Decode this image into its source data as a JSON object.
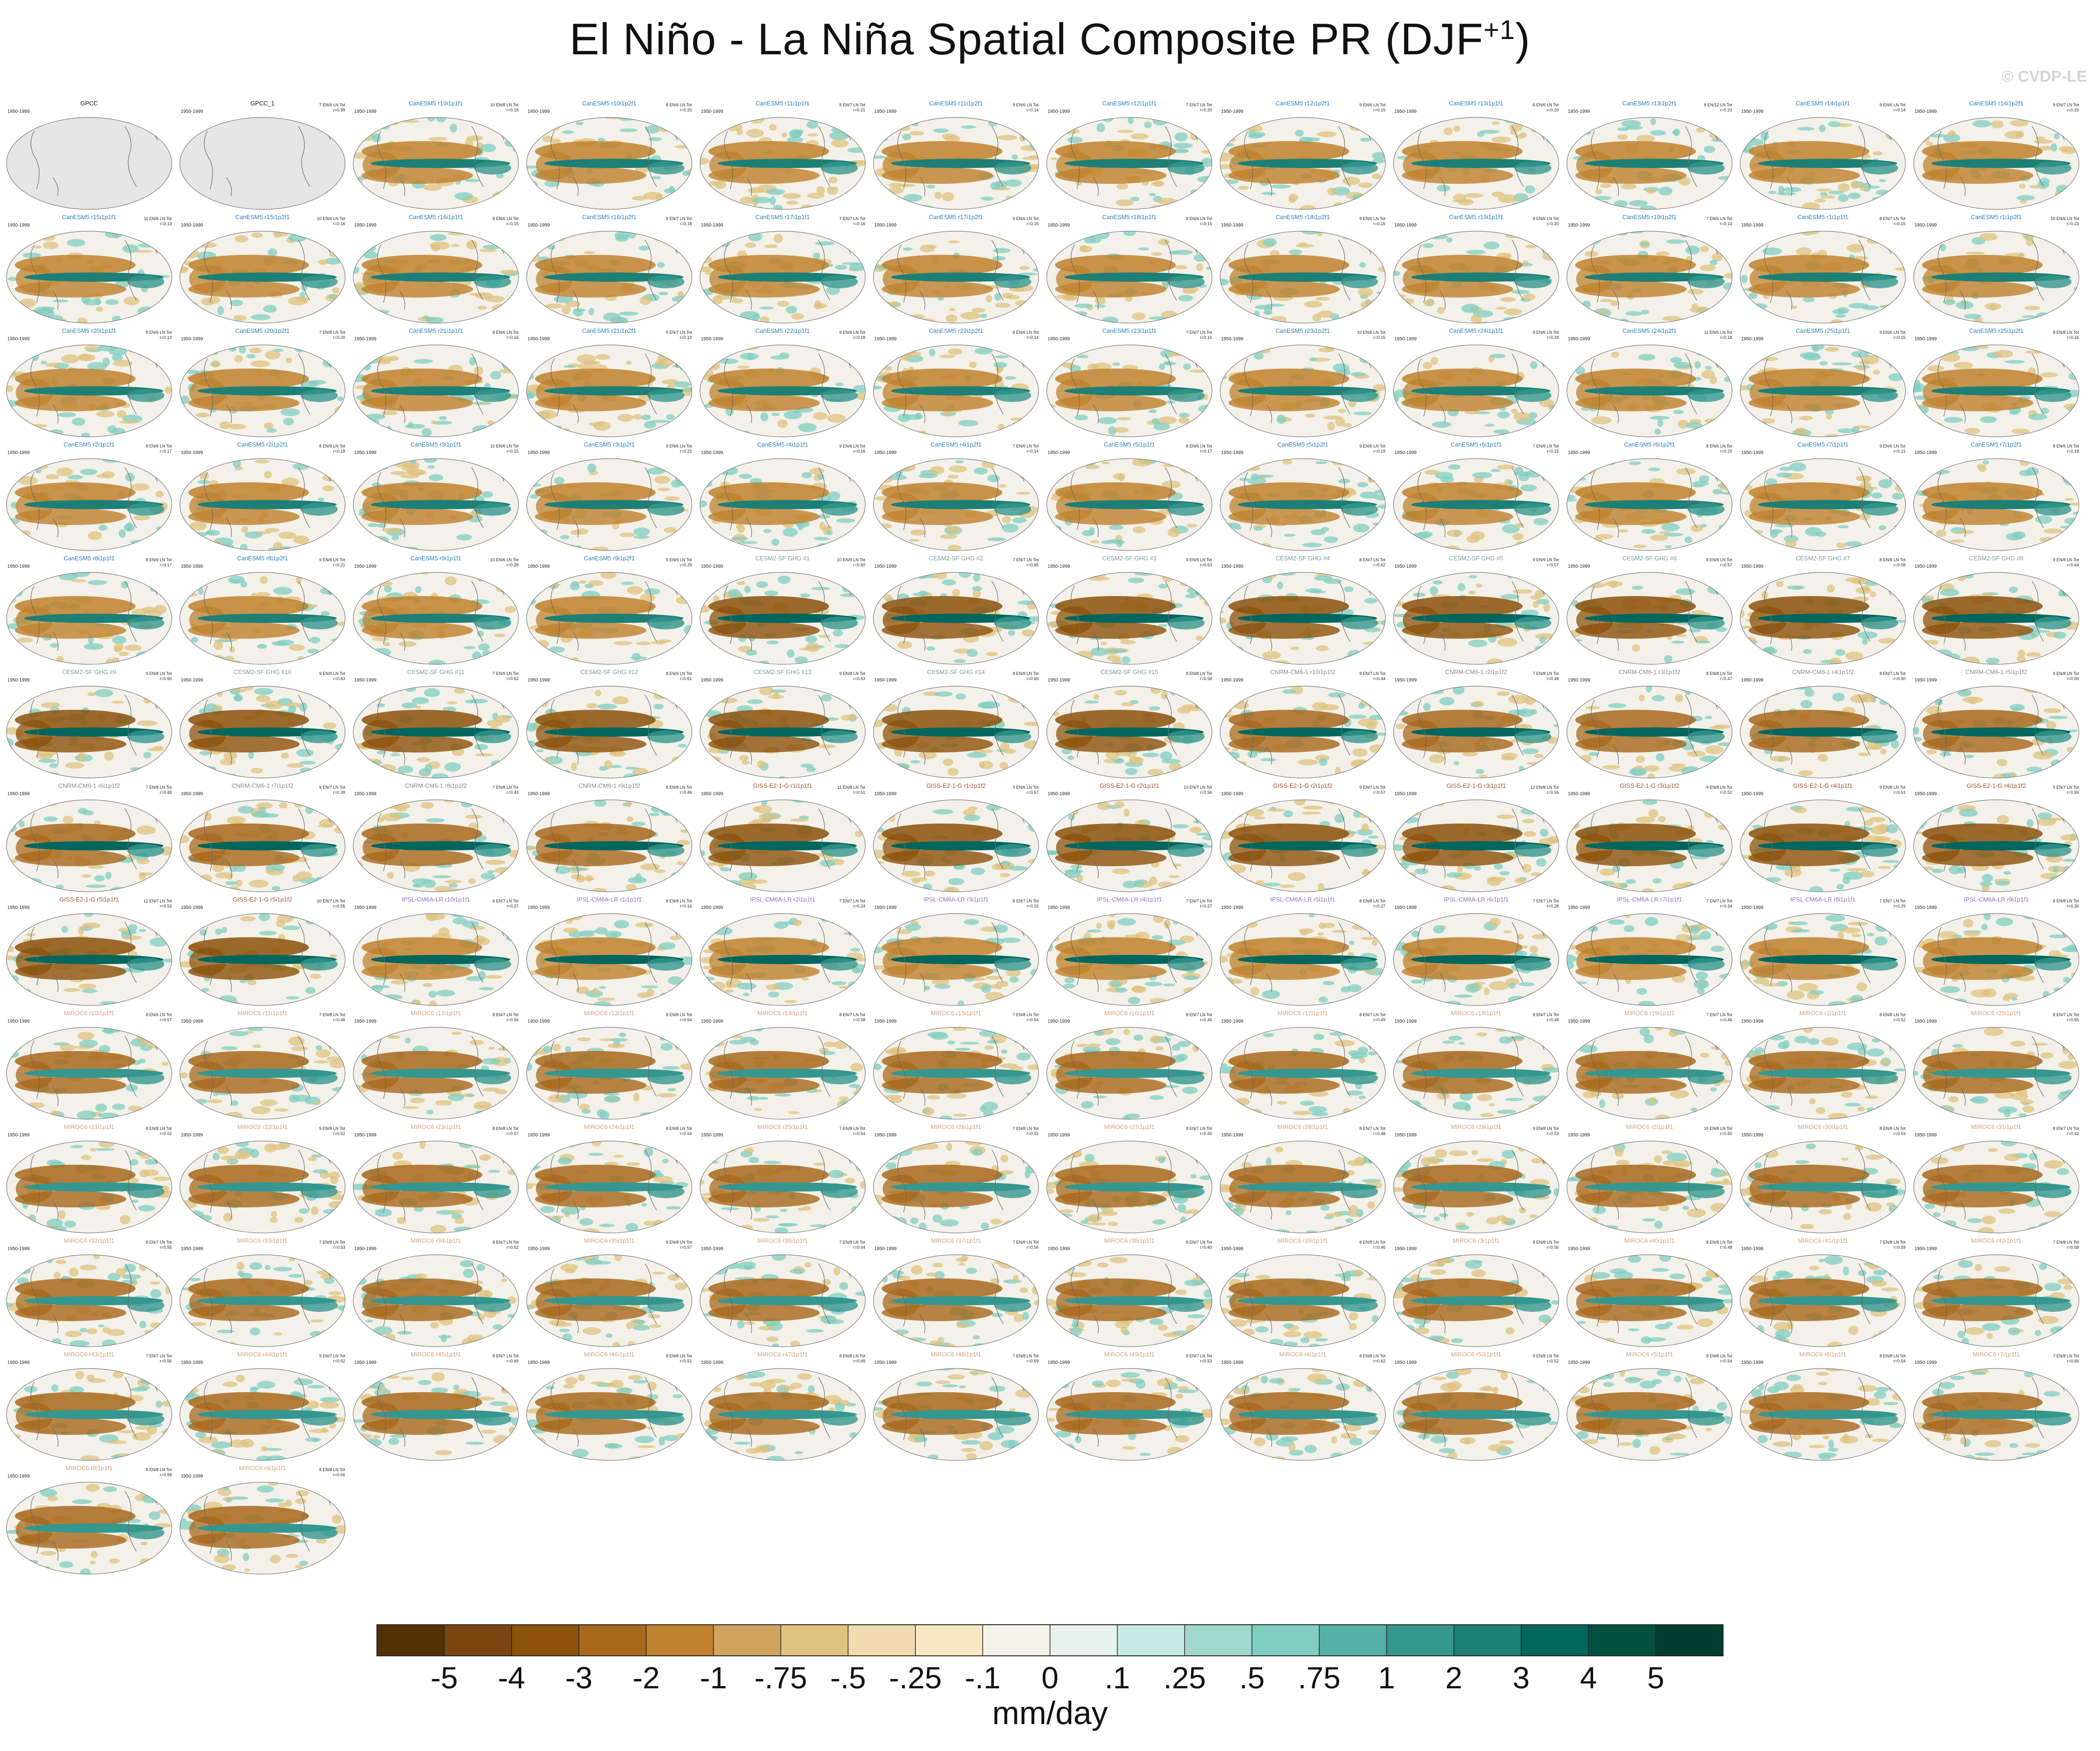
{
  "title": {
    "main": "El Niño - La Niña Spatial Composite PR (DJF",
    "superscript": "+1",
    "close": ")"
  },
  "watermark": "© CVDP-LE",
  "chart_data": {
    "type": "map-grid",
    "units": "mm/day",
    "panel_period": "1950-1999",
    "colorbar": {
      "labels": [
        "-5",
        "-4",
        "-3",
        "-2",
        "-1",
        "-.75",
        "-.5",
        "-.25",
        "-.1",
        "0",
        ".1",
        ".25",
        ".5",
        ".75",
        "1",
        "2",
        "3",
        "4",
        "5"
      ],
      "colors": [
        "#543005",
        "#7a4510",
        "#8c510a",
        "#a8681c",
        "#bf812d",
        "#d0a45f",
        "#dfc27d",
        "#f0dcb0",
        "#f6e8c3",
        "#f5f2ea",
        "#e8f3ef",
        "#c7eae5",
        "#a0d8cf",
        "#80cdc1",
        "#56b2a7",
        "#35978f",
        "#1d7f76",
        "#01665e",
        "#02503f",
        "#003c30"
      ]
    },
    "panels": [
      {
        "title": "GPCC",
        "stats": "",
        "group": "obs"
      },
      {
        "title": "GPCC_1",
        "stats": "7 EN/6 LN Tot\nr=0.99",
        "group": "obs"
      },
      {
        "title": "CanESM5 r10i1p1f1",
        "stats": "10 EN/8 LN Tot\nr=0.18",
        "group": "canesm"
      },
      {
        "title": "CanESM5 r10i1p2f1",
        "stats": "8 EN/6 LN Tot\nr=0.25",
        "group": "canesm"
      },
      {
        "title": "CanESM5 r11i1p1f1",
        "stats": "8 EN/7 LN Tot\nr=0.21",
        "group": "canesm"
      },
      {
        "title": "CanESM5 r11i1p2f1",
        "stats": "9 EN/6 LN Tot\nr=0.14",
        "group": "canesm"
      },
      {
        "title": "CanESM5 r12i1p1f1",
        "stats": "7 EN/7 LN Tot\nr=0.20",
        "group": "canesm"
      },
      {
        "title": "CanESM5 r12i1p2f1",
        "stats": "9 EN/6 LN Tot\nr=0.15",
        "group": "canesm"
      },
      {
        "title": "CanESM5 r13i1p1f1",
        "stats": "6 EN/6 LN Tot\nr=0.20",
        "group": "canesm"
      },
      {
        "title": "CanESM5 r13i1p2f1",
        "stats": "8 EN/12 LN Tot\nr=0.23",
        "group": "canesm"
      },
      {
        "title": "CanESM5 r14i1p1f1",
        "stats": "9 EN/6 LN Tot\nr=0.14",
        "group": "canesm"
      },
      {
        "title": "CanESM5 r14i1p2f1",
        "stats": "9 EN/7 LN Tot\nr=0.15",
        "group": "canesm"
      },
      {
        "title": "CanESM5 r15i1p1f1",
        "stats": "11 EN/6 LN Tot\nr=0.13",
        "group": "canesm"
      },
      {
        "title": "CanESM5 r15i1p2f1",
        "stats": "10 EN/6 LN Tot\nr=0.16",
        "group": "canesm"
      },
      {
        "title": "CanESM5 r16i1p1f1",
        "stats": "8 EN/6 LN Tot\nr=0.15",
        "group": "canesm"
      },
      {
        "title": "CanESM5 r16i1p2f1",
        "stats": "9 EN/7 LN Tot\nr=0.18",
        "group": "canesm"
      },
      {
        "title": "CanESM5 r17i1p1f1",
        "stats": "7 EN/7 LN Tot\nr=0.16",
        "group": "canesm"
      },
      {
        "title": "CanESM5 r17i1p2f1",
        "stats": "9 EN/6 LN Tot\nr=0.15",
        "group": "canesm"
      },
      {
        "title": "CanESM5 r18i1p1f1",
        "stats": "8 EN/6 LN Tot\nr=0.16",
        "group": "canesm"
      },
      {
        "title": "CanESM5 r18i1p2f1",
        "stats": "9 EN/6 LN Tot\nr=0.15",
        "group": "canesm"
      },
      {
        "title": "CanESM5 r19i1p1f1",
        "stats": "8 EN/6 LN Tot\nr=0.20",
        "group": "canesm"
      },
      {
        "title": "CanESM5 r19i1p2f1",
        "stats": "7 EN/6 LN Tot\nr=0.14",
        "group": "canesm"
      },
      {
        "title": "CanESM5 r1i1p1f1",
        "stats": "8 EN/7 LN Tot\nr=0.15",
        "group": "canesm"
      },
      {
        "title": "CanESM5 r1i1p2f1",
        "stats": "10 EN/6 LN Tot\nr=0.23",
        "group": "canesm"
      },
      {
        "title": "CanESM5 r20i1p1f1",
        "stats": "8 EN/6 LN Tot\nr=0.19",
        "group": "canesm"
      },
      {
        "title": "CanESM5 r20i1p2f1",
        "stats": "7 EN/8 LN Tot\nr=0.20",
        "group": "canesm"
      },
      {
        "title": "CanESM5 r21i1p1f1",
        "stats": "8 EN/6 LN Tot\nr=0.16",
        "group": "canesm"
      },
      {
        "title": "CanESM5 r21i1p2f1",
        "stats": "9 EN/7 LN Tot\nr=0.19",
        "group": "canesm"
      },
      {
        "title": "CanESM5 r22i1p1f1",
        "stats": "8 EN/6 LN Tot\nr=0.18",
        "group": "canesm"
      },
      {
        "title": "CanESM5 r22i1p2f1",
        "stats": "8 EN/6 LN Tot\nr=0.14",
        "group": "canesm"
      },
      {
        "title": "CanESM5 r23i1p1f1",
        "stats": "7 EN/7 LN Tot\nr=0.16",
        "group": "canesm"
      },
      {
        "title": "CanESM5 r23i1p2f1",
        "stats": "10 EN/6 LN Tot\nr=0.15",
        "group": "canesm"
      },
      {
        "title": "CanESM5 r24i1p1f1",
        "stats": "8 EN/6 LN Tot\nr=0.18",
        "group": "canesm"
      },
      {
        "title": "CanESM5 r24i1p2f1",
        "stats": "11 EN/6 LN Tot\nr=0.18",
        "group": "canesm"
      },
      {
        "title": "CanESM5 r25i1p1f1",
        "stats": "9 EN/6 LN Tot\nr=0.15",
        "group": "canesm"
      },
      {
        "title": "CanESM5 r25i1p2f1",
        "stats": "8 EN/8 LN Tot\nr=0.16",
        "group": "canesm"
      },
      {
        "title": "CanESM5 r2i1p1f1",
        "stats": "8 EN/6 LN Tot\nr=0.17",
        "group": "canesm"
      },
      {
        "title": "CanESM5 r2i1p2f1",
        "stats": "8 EN/6 LN Tot\nr=0.18",
        "group": "canesm"
      },
      {
        "title": "CanESM5 r3i1p1f1",
        "stats": "10 EN/6 LN Tot\nr=0.15",
        "group": "canesm"
      },
      {
        "title": "CanESM5 r3i1p2f1",
        "stats": "9 EN/6 LN Tot\nr=0.22",
        "group": "canesm"
      },
      {
        "title": "CanESM5 r4i1p1f1",
        "stats": "9 EN/6 LN Tot\nr=0.16",
        "group": "canesm"
      },
      {
        "title": "CanESM5 r4i1p2f1",
        "stats": "7 EN/6 LN Tot\nr=0.14",
        "group": "canesm"
      },
      {
        "title": "CanESM5 r5i1p1f1",
        "stats": "8 EN/6 LN Tot\nr=0.17",
        "group": "canesm"
      },
      {
        "title": "CanESM5 r5i1p2f1",
        "stats": "9 EN/6 LN Tot\nr=0.19",
        "group": "canesm"
      },
      {
        "title": "CanESM5 r6i1p1f1",
        "stats": "7 EN/6 LN Tot\nr=0.15",
        "group": "canesm"
      },
      {
        "title": "CanESM5 r6i1p2f1",
        "stats": "8 EN/6 LN Tot\nr=0.20",
        "group": "canesm"
      },
      {
        "title": "CanESM5 r7i1p1f1",
        "stats": "9 EN/6 LN Tot\nr=0.21",
        "group": "canesm"
      },
      {
        "title": "CanESM5 r7i1p2f1",
        "stats": "8 EN/6 LN Tot\nr=0.18",
        "group": "canesm"
      },
      {
        "title": "CanESM5 r8i1p1f1",
        "stats": "8 EN/6 LN Tot\nr=0.17",
        "group": "canesm"
      },
      {
        "title": "CanESM5 r8i1p2f1",
        "stats": "9 EN/6 LN Tot\nr=0.21",
        "group": "canesm"
      },
      {
        "title": "CanESM5 r9i1p1f1",
        "stats": "10 EN/6 LN Tot\nr=0.28",
        "group": "canesm"
      },
      {
        "title": "CanESM5 r9i1p2f1",
        "stats": "9 EN/6 LN Tot\nr=0.29",
        "group": "canesm"
      },
      {
        "title": "CESM2-SF GHG #1",
        "stats": "10 EN/9 LN Tot\nr=0.60",
        "group": "cesm"
      },
      {
        "title": "CESM2-SF GHG #2",
        "stats": "7 EN/7 LN Tot\nr=0.65",
        "group": "cesm"
      },
      {
        "title": "CESM2-SF GHG #3",
        "stats": "9 EN/8 LN Tot\nr=0.63",
        "group": "cesm"
      },
      {
        "title": "CESM2-SF GHG #4",
        "stats": "8 EN/7 LN Tot\nr=0.62",
        "group": "cesm"
      },
      {
        "title": "CESM2-SF GHG #5",
        "stats": "9 EN/9 LN Tot\nr=0.57",
        "group": "cesm"
      },
      {
        "title": "CESM2-SF GHG #6",
        "stats": "8 EN/8 LN Tot\nr=0.57",
        "group": "cesm"
      },
      {
        "title": "CESM2-SF GHG #7",
        "stats": "8 EN/8 LN Tot\nr=0.58",
        "group": "cesm"
      },
      {
        "title": "CESM2-SF GHG #8",
        "stats": "9 EN/8 LN Tot\nr=0.64",
        "group": "cesm"
      },
      {
        "title": "CESM2-SF GHG #9",
        "stats": "9 EN/8 LN Tot\nr=0.60",
        "group": "cesm"
      },
      {
        "title": "CESM2-SF GHG #10",
        "stats": "9 EN/9 LN Tot\nr=0.63",
        "group": "cesm"
      },
      {
        "title": "CESM2-SF GHG #11",
        "stats": "7 EN/9 LN Tot\nr=0.62",
        "group": "cesm"
      },
      {
        "title": "CESM2-SF GHG #12",
        "stats": "8 EN/9 LN Tot\nr=0.61",
        "group": "cesm"
      },
      {
        "title": "CESM2-SF GHG #13",
        "stats": "9 EN/8 LN Tot\nr=0.63",
        "group": "cesm"
      },
      {
        "title": "CESM2-SF GHG #14",
        "stats": "8 EN/8 LN Tot\nr=0.65",
        "group": "cesm"
      },
      {
        "title": "CESM2-SF GHG #15",
        "stats": "8 EN/8 LN Tot\nr=0.58",
        "group": "cesm"
      },
      {
        "title": "CNRM-CM6-1 r10i1p1f2",
        "stats": "8 EN/7 LN Tot\nr=0.44",
        "group": "cnrm"
      },
      {
        "title": "CNRM-CM6-1 r2i1p1f2",
        "stats": "7 EN/8 LN Tot\nr=0.48",
        "group": "cnrm"
      },
      {
        "title": "CNRM-CM6-1 r3i1p1f2",
        "stats": "8 EN/8 LN Tot\nr=0.47",
        "group": "cnrm"
      },
      {
        "title": "CNRM-CM6-1 r4i1p1f2",
        "stats": "8 EN/7 LN Tot\nr=0.50",
        "group": "cnrm"
      },
      {
        "title": "CNRM-CM6-1 r5i1p1f2",
        "stats": "9 EN/8 LN Tot\nr=0.50",
        "group": "cnrm"
      },
      {
        "title": "CNRM-CM6-1 r6i1p1f2",
        "stats": "7 EN/8 LN Tot\nr=0.48",
        "group": "cnrm"
      },
      {
        "title": "CNRM-CM6-1 r7i1p1f2",
        "stats": "9 EN/7 LN Tot\nr=0.39",
        "group": "cnrm"
      },
      {
        "title": "CNRM-CM6-1 r8i1p1f2",
        "stats": "7 EN/8 LN Tot\nr=0.43",
        "group": "cnrm"
      },
      {
        "title": "CNRM-CM6-1 r9i1p1f2",
        "stats": "8 EN/8 LN Tot\nr=0.46",
        "group": "cnrm"
      },
      {
        "title": "GISS-E2-1-G r1i1p1f1",
        "stats": "11 EN/8 LN Tot\nr=0.51",
        "group": "giss"
      },
      {
        "title": "GISS-E2-1-G r1i1p1f2",
        "stats": "9 EN/6 LN Tot\nr=0.57",
        "group": "giss"
      },
      {
        "title": "GISS-E2-1-G r2i1p1f1",
        "stats": "10 EN/7 LN Tot\nr=0.56",
        "group": "giss"
      },
      {
        "title": "GISS-E2-1-G r2i1p1f2",
        "stats": "9 EN/7 LN Tot\nr=0.57",
        "group": "giss"
      },
      {
        "title": "GISS-E2-1-G r3i1p1f1",
        "stats": "12 EN/8 LN Tot\nr=0.56",
        "group": "giss"
      },
      {
        "title": "GISS-E2-1-G r3i1p1f2",
        "stats": "9 EN/8 LN Tot\nr=0.51",
        "group": "giss"
      },
      {
        "title": "GISS-E2-1-G r4i1p1f1",
        "stats": "9 EN/8 LN Tot\nr=0.51",
        "group": "giss"
      },
      {
        "title": "GISS-E2-1-G r4i1p1f2",
        "stats": "9 EN/7 LN Tot\nr=0.59",
        "group": "giss"
      },
      {
        "title": "GISS-E2-1-G r5i1p1f1",
        "stats": "12 EN/7 LN Tot\nr=0.53",
        "group": "giss"
      },
      {
        "title": "GISS-E2-1-G r5i1p1f2",
        "stats": "10 EN/7 LN Tot\nr=0.55",
        "group": "giss"
      },
      {
        "title": "IPSL-CM6A-LR r10i1p1f1",
        "stats": "6 EN/7 LN Tot\nr=0.27",
        "group": "ipsl"
      },
      {
        "title": "IPSL-CM6A-LR r1i1p1f1",
        "stats": "8 EN/8 LN Tot\nr=0.16",
        "group": "ipsl"
      },
      {
        "title": "IPSL-CM6A-LR r2i1p1f1",
        "stats": "7 EN/7 LN Tot\nr=0.24",
        "group": "ipsl"
      },
      {
        "title": "IPSL-CM6A-LR r3i1p1f1",
        "stats": "8 EN/7 LN Tot\nr=0.15",
        "group": "ipsl"
      },
      {
        "title": "IPSL-CM6A-LR r4i1p1f1",
        "stats": "7 EN/7 LN Tot\nr=0.27",
        "group": "ipsl"
      },
      {
        "title": "IPSL-CM6A-LR r5i1p1f1",
        "stats": "8 EN/8 LN Tot\nr=0.27",
        "group": "ipsl"
      },
      {
        "title": "IPSL-CM6A-LR r6i1p1f1",
        "stats": "7 EN/7 LN Tot\nr=0.28",
        "group": "ipsl"
      },
      {
        "title": "IPSL-CM6A-LR r7i1p1f1",
        "stats": "7 EN/7 LN Tot\nr=0.34",
        "group": "ipsl"
      },
      {
        "title": "IPSL-CM6A-LR r8i1p1f1",
        "stats": "7 EN/7 LN Tot\nr=0.29",
        "group": "ipsl"
      },
      {
        "title": "IPSL-CM6A-LR r9i1p1f1",
        "stats": "8 EN/8 LN Tot\nr=0.30",
        "group": "ipsl"
      },
      {
        "title": "MIROC6 r10i1p1f1",
        "stats": "8 EN/6 LN Tot\nr=0.57",
        "group": "miroc"
      },
      {
        "title": "MIROC6 r11i1p1f1",
        "stats": "7 EN/8 LN Tot\nr=0.48",
        "group": "miroc"
      },
      {
        "title": "MIROC6 r12i1p1f1",
        "stats": "8 EN/7 LN Tot\nr=0.56",
        "group": "miroc"
      },
      {
        "title": "MIROC6 r13i1p1f1",
        "stats": "8 EN/8 LN Tot\nr=0.54",
        "group": "miroc"
      },
      {
        "title": "MIROC6 r14i1p1f1",
        "stats": "8 EN/7 LN Tot\nr=0.58",
        "group": "miroc"
      },
      {
        "title": "MIROC6 r15i1p1f1",
        "stats": "7 EN/8 LN Tot\nr=0.54",
        "group": "miroc"
      },
      {
        "title": "MIROC6 r16i1p1f1",
        "stats": "8 EN/7 LN Tot\nr=0.45",
        "group": "miroc"
      },
      {
        "title": "MIROC6 r17i1p1f1",
        "stats": "8 EN/7 LN Tot\nr=0.49",
        "group": "miroc"
      },
      {
        "title": "MIROC6 r18i1p1f1",
        "stats": "8 EN/7 LN Tot\nr=0.48",
        "group": "miroc"
      },
      {
        "title": "MIROC6 r19i1p1f1",
        "stats": "7 EN/7 LN Tot\nr=0.46",
        "group": "miroc"
      },
      {
        "title": "MIROC6 r1i1p1f1",
        "stats": "8 EN/8 LN Tot\nr=0.52",
        "group": "miroc"
      },
      {
        "title": "MIROC6 r20i1p1f1",
        "stats": "8 EN/7 LN Tot\nr=0.55",
        "group": "miroc"
      },
      {
        "title": "MIROC6 r21i1p1f1",
        "stats": "8 EN/8 LN Tot\nr=0.52",
        "group": "miroc"
      },
      {
        "title": "MIROC6 r22i1p1f1",
        "stats": "9 EN/8 LN Tot\nr=0.52",
        "group": "miroc"
      },
      {
        "title": "MIROC6 r23i1p1f1",
        "stats": "8 EN/8 LN Tot\nr=0.57",
        "group": "miroc"
      },
      {
        "title": "MIROC6 r24i1p1f1",
        "stats": "8 EN/8 LN Tot\nr=0.54",
        "group": "miroc"
      },
      {
        "title": "MIROC6 r25i1p1f1",
        "stats": "7 EN/8 LN Tot\nr=0.54",
        "group": "miroc"
      },
      {
        "title": "MIROC6 r26i1p1f1",
        "stats": "7 EN/8 LN Tot\nr=0.51",
        "group": "miroc"
      },
      {
        "title": "MIROC6 r27i1p1f1",
        "stats": "8 EN/7 LN Tot\nr=0.56",
        "group": "miroc"
      },
      {
        "title": "MIROC6 r28i1p1f1",
        "stats": "8 EN/7 LN Tot\nr=0.48",
        "group": "miroc"
      },
      {
        "title": "MIROC6 r29i1p1f1",
        "stats": "9 EN/8 LN Tot\nr=0.53",
        "group": "miroc"
      },
      {
        "title": "MIROC6 r2i1p1f1",
        "stats": "10 EN/8 LN Tot\nr=0.55",
        "group": "miroc"
      },
      {
        "title": "MIROC6 r30i1p1f1",
        "stats": "8 EN/8 LN Tot\nr=0.53",
        "group": "miroc"
      },
      {
        "title": "MIROC6 r31i1p1f1",
        "stats": "8 EN/7 LN Tot\nr=0.42",
        "group": "miroc"
      },
      {
        "title": "MIROC6 r32i1p1f1",
        "stats": "8 EN/7 LN Tot\nr=0.55",
        "group": "miroc"
      },
      {
        "title": "MIROC6 r33i1p1f1",
        "stats": "7 EN/8 LN Tot\nr=0.53",
        "group": "miroc"
      },
      {
        "title": "MIROC6 r34i1p1f1",
        "stats": "8 EN/7 LN Tot\nr=0.52",
        "group": "miroc"
      },
      {
        "title": "MIROC6 r35i1p1f1",
        "stats": "9 EN/8 LN Tot\nr=0.57",
        "group": "miroc"
      },
      {
        "title": "MIROC6 r36i1p1f1",
        "stats": "7 EN/8 LN Tot\nr=0.44",
        "group": "miroc"
      },
      {
        "title": "MIROC6 r37i1p1f1",
        "stats": "7 EN/8 LN Tot\nr=0.56",
        "group": "miroc"
      },
      {
        "title": "MIROC6 r38i1p1f1",
        "stats": "8 EN/7 LN Tot\nr=0.60",
        "group": "miroc"
      },
      {
        "title": "MIROC6 r39i1p1f1",
        "stats": "8 EN/8 LN Tot\nr=0.46",
        "group": "miroc"
      },
      {
        "title": "MIROC6 r3i1p1f1",
        "stats": "8 EN/8 LN Tot\nr=0.56",
        "group": "miroc"
      },
      {
        "title": "MIROC6 r40i1p1f1",
        "stats": "8 EN/8 LN Tot\nr=0.48",
        "group": "miroc"
      },
      {
        "title": "MIROC6 r41i1p1f1",
        "stats": "7 EN/8 LN Tot\nr=0.59",
        "group": "miroc"
      },
      {
        "title": "MIROC6 r42i1p1f1",
        "stats": "7 EN/8 LN Tot\nr=0.58",
        "group": "miroc"
      },
      {
        "title": "MIROC6 r43i1p1f1",
        "stats": "7 EN/7 LN Tot\nr=0.56",
        "group": "miroc"
      },
      {
        "title": "MIROC6 r44i1p1f1",
        "stats": "9 EN/7 LN Tot\nr=0.52",
        "group": "miroc"
      },
      {
        "title": "MIROC6 r45i1p1f1",
        "stats": "8 EN/7 LN Tot\nr=0.49",
        "group": "miroc"
      },
      {
        "title": "MIROC6 r46i1p1f1",
        "stats": "8 EN/8 LN Tot\nr=0.51",
        "group": "miroc"
      },
      {
        "title": "MIROC6 r47i1p1f1",
        "stats": "8 EN/8 LN Tot\nr=0.49",
        "group": "miroc"
      },
      {
        "title": "MIROC6 r48i1p1f1",
        "stats": "7 EN/8 LN Tot\nr=0.59",
        "group": "miroc"
      },
      {
        "title": "MIROC6 r49i1p1f1",
        "stats": "8 EN/7 LN Tot\nr=0.53",
        "group": "miroc"
      },
      {
        "title": "MIROC6 r4i1p1f1",
        "stats": "8 EN/8 LN Tot\nr=0.62",
        "group": "miroc"
      },
      {
        "title": "MIROC6 r50i1p1f1",
        "stats": "9 EN/8 LN Tot\nr=0.52",
        "group": "miroc"
      },
      {
        "title": "MIROC6 r5i1p1f1",
        "stats": "8 EN/8 LN Tot\nr=0.54",
        "group": "miroc"
      },
      {
        "title": "MIROC6 r6i1p1f1",
        "stats": "8 EN/8 LN Tot\nr=0.54",
        "group": "miroc"
      },
      {
        "title": "MIROC6 r7i1p1f1",
        "stats": "7 EN/8 LN Tot\nr=0.56",
        "group": "miroc"
      },
      {
        "title": "MIROC6 r8i1p1f1",
        "stats": "8 EN/8 LN Tot\nr=0.58",
        "group": "miroc"
      },
      {
        "title": "MIROC6 r9i1p1f1",
        "stats": "8 EN/8 LN Tot\nr=0.56",
        "group": "miroc"
      }
    ]
  },
  "group_colors": {
    "obs": "#111111",
    "canesm": "#2a7fb8",
    "cesm": "#7a9a9a",
    "cnrm": "#8a8a8a",
    "giss": "#a0522d",
    "ipsl": "#8a6fc4",
    "miroc": "#d4a07c"
  }
}
